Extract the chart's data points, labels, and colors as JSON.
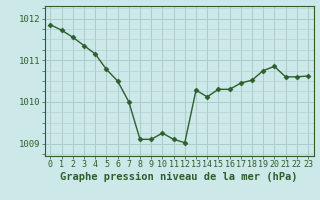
{
  "x": [
    0,
    1,
    2,
    3,
    4,
    5,
    6,
    7,
    8,
    9,
    10,
    11,
    12,
    13,
    14,
    15,
    16,
    17,
    18,
    19,
    20,
    21,
    22,
    23
  ],
  "y": [
    1011.85,
    1011.72,
    1011.55,
    1011.35,
    1011.15,
    1010.78,
    1010.5,
    1010.0,
    1009.1,
    1009.1,
    1009.25,
    1009.1,
    1009.02,
    1010.28,
    1010.12,
    1010.3,
    1010.3,
    1010.45,
    1010.52,
    1010.75,
    1010.85,
    1010.6,
    1010.6,
    1010.62
  ],
  "line_color": "#2d5f2d",
  "marker": "D",
  "marker_size": 2.5,
  "bg_color": "#cce8e8",
  "grid_color": "#aacccc",
  "title": "Graphe pression niveau de la mer (hPa)",
  "ylim": [
    1008.7,
    1012.3
  ],
  "yticks": [
    1009,
    1010,
    1011,
    1012
  ],
  "axis_color": "#2d5f2d",
  "tick_fontsize": 6,
  "xlabel_fontsize": 7.5
}
